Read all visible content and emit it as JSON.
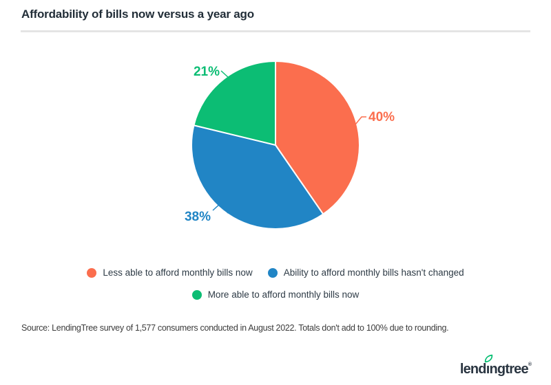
{
  "header": {
    "title": "Affordability of bills now versus a year ago"
  },
  "chart_data": {
    "type": "pie",
    "title": "Affordability of bills now versus a year ago",
    "start_angle_deg": 0,
    "direction": "clockwise",
    "slices": [
      {
        "label": "Less able to afford monthly bills now",
        "value": 40,
        "display": "40%",
        "color": "#FB6E4E"
      },
      {
        "label": "Ability to afford monthly bills hasn't changed",
        "value": 38,
        "display": "38%",
        "color": "#2185C5"
      },
      {
        "label": "More able to afford monthly bills now",
        "value": 21,
        "display": "21%",
        "color": "#0CBD74"
      }
    ],
    "legend_position": "bottom-center",
    "labels_format": "percent-with-leader-lines"
  },
  "source": {
    "text": "Source: LendingTree survey of 1,577 consumers conducted in August 2022. Totals don't add to 100% due to rounding."
  },
  "logo": {
    "text": "lendingtree",
    "registered_mark": "®",
    "leaf_color": "#00BC6F",
    "text_color": "#2A3541"
  },
  "colors": {
    "background": "#FFFFFF",
    "title_text": "#222E38",
    "legend_text": "#2D3A45",
    "source_text": "#3C3C3C",
    "divider": "#E4E4E4"
  }
}
